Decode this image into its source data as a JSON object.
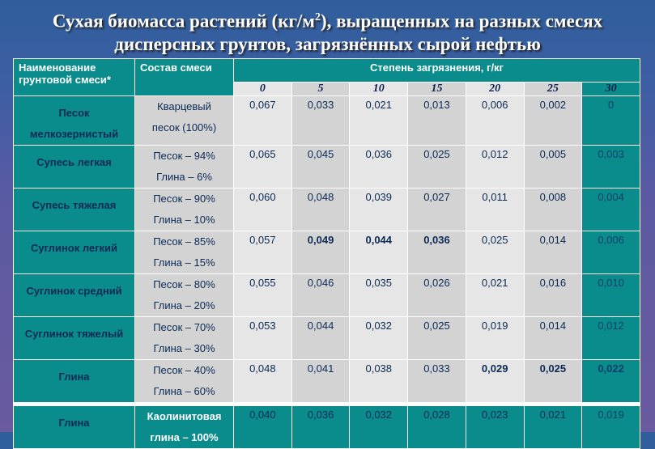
{
  "title_line1": "Сухая биомасса растений (кг/м",
  "title_sup": "2",
  "title_line1_end": "), выращенных на разных смесях",
  "title_line2": "дисперсных грунтов, загрязнённых сырой нефтью",
  "headers": {
    "name": "Наименование грунтовой смеси*",
    "composition": "Состав смеси",
    "degree": "Степень загрязнения, г/кг"
  },
  "levels": [
    "0",
    "5",
    "10",
    "15",
    "20",
    "25",
    "30"
  ],
  "rows": [
    {
      "name": "Песок мелкозернистый",
      "comp1": "Кварцевый",
      "comp2": "песок (100%)",
      "values": [
        "0,067",
        "0,033",
        "0,021",
        "0,013",
        "0,006",
        "0,002",
        "0"
      ]
    },
    {
      "name": "Супесь легкая",
      "comp1": "Песок – 94%",
      "comp2": "Глина – 6%",
      "values": [
        "0,065",
        "0,045",
        "0,036",
        "0,025",
        "0,012",
        "0,005",
        "0,003"
      ]
    },
    {
      "name": "Супесь тяжелая",
      "comp1": "Песок – 90%",
      "comp2": "Глина – 10%",
      "values": [
        "0,060",
        "0,048",
        "0,039",
        "0,027",
        "0,011",
        "0,008",
        "0,004"
      ]
    },
    {
      "name": "Суглинок легкий",
      "comp1": "Песок – 85%",
      "comp2": "Глина – 15%",
      "values": [
        "0,057",
        "0,049",
        "0,044",
        "0,036",
        "0,025",
        "0,014",
        "0,006"
      ],
      "bold": [
        1,
        2,
        3
      ]
    },
    {
      "name": "Суглинок средний",
      "comp1": "Песок – 80%",
      "comp2": "Глина – 20%",
      "values": [
        "0,055",
        "0,046",
        "0,035",
        "0,026",
        "0,021",
        "0,016",
        "0,010"
      ]
    },
    {
      "name": "Суглинок тяжелый",
      "comp1": "Песок – 70%",
      "comp2": "Глина – 30%",
      "values": [
        "0,053",
        "0,044",
        "0,032",
        "0,025",
        "0,019",
        "0,014",
        "0,012"
      ]
    },
    {
      "name": "Глина",
      "comp1": "Песок – 40%",
      "comp2": "Глина – 60%",
      "values": [
        "0,048",
        "0,041",
        "0,038",
        "0,033",
        "0,029",
        "0,025",
        "0,022"
      ],
      "bold": [
        4,
        5,
        6
      ]
    },
    {
      "name": "Глина",
      "comp1": "Каолинитовая",
      "comp2": "глина – 100%",
      "values": [
        "0,040",
        "0,036",
        "0,032",
        "0,028",
        "0,023",
        "0,021",
        "0,019"
      ]
    }
  ],
  "colors": {
    "teal": "#0a8c8c",
    "light": "#e6e6e6",
    "dark": "#d3d3d3",
    "text": "#0b2a55"
  }
}
